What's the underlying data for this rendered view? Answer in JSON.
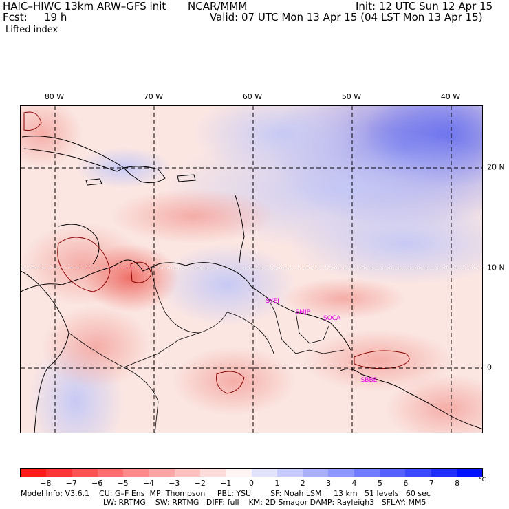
{
  "header": {
    "model": "HAIC–HIWC 13km ARW–GFS init",
    "center": "NCAR/MMM",
    "init": "Init: 12 UTC Sun 12 Apr 15",
    "fcst_label": "Fcst:",
    "fcst_value": "19 h",
    "valid": "Valid: 07 UTC Mon 13 Apr 15 (04 LST Mon 13 Apr 15)",
    "field": "Lifted index"
  },
  "map": {
    "lon_labels": [
      {
        "text": "80 W",
        "lon": -80
      },
      {
        "text": "70 W",
        "lon": -70
      },
      {
        "text": "60 W",
        "lon": -60
      },
      {
        "text": "50 W",
        "lon": -50
      },
      {
        "text": "40 W",
        "lon": -40
      }
    ],
    "lat_labels": [
      {
        "text": "20 N",
        "lat": 20
      },
      {
        "text": "10 N",
        "lat": 10
      },
      {
        "text": "0",
        "lat": 0
      }
    ],
    "sites": [
      {
        "code": "SYEI",
        "lon": -58.1,
        "lat": 6.5
      },
      {
        "code": "SMJP",
        "lon": -55.1,
        "lat": 5.4
      },
      {
        "code": "SOCA",
        "lon": -52.3,
        "lat": 4.8
      },
      {
        "code": "SBBE",
        "lon": -48.5,
        "lat": -1.4
      }
    ],
    "colors": {
      "neg_strong": "#ff2020",
      "pos_strong": "#1818e0",
      "land_outline": "#000000",
      "contour": "#8b0000"
    }
  },
  "colorbar": {
    "labels": [
      "−8",
      "−7",
      "−6",
      "−5",
      "−4",
      "−3",
      "−2",
      "−1",
      "0",
      "1",
      "2",
      "3",
      "4",
      "5",
      "6",
      "7",
      "8"
    ],
    "unit": "°C",
    "colors": [
      "#ff1a1a",
      "#ff3535",
      "#ff5252",
      "#ff6e6e",
      "#ff8a8a",
      "#ffa5a5",
      "#ffc0c0",
      "#ffdcdc",
      "#fff4f4",
      "#e2e4ff",
      "#c6caff",
      "#aab0ff",
      "#8e96ff",
      "#727cff",
      "#5662ff",
      "#3a48ff",
      "#1e2eff",
      "#0014ff"
    ]
  },
  "footer": {
    "line1": "Model Info: V3.6.1    CU: G–F Ens  MP: Thompson     PBL: YSU        SF: Noah LSM     13 km   51 levels   60 sec",
    "line2": "LW: RRTMG    SW: RRTMG   DIFF: full    KM: 2D Smagor DAMP: Rayleigh3   SFLAY: MM5"
  }
}
